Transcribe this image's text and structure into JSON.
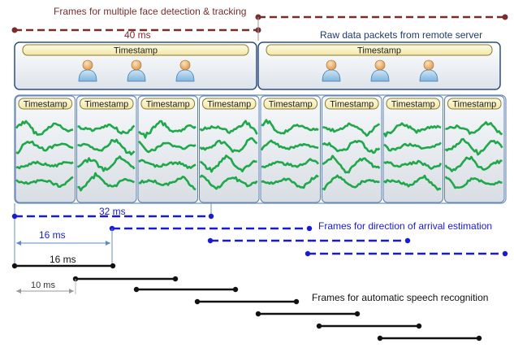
{
  "face_frames": {
    "title": "Frames for multiple face detection & tracking",
    "duration_label": "40 ms",
    "color": "#7a2c2c"
  },
  "packets": {
    "label": "Raw data packets from remote server",
    "timestamp_label": "Timestamp",
    "person_icon": "person-icon",
    "persons_per_packet": 3,
    "count": 2
  },
  "audio": {
    "timestamp_label": "Timestamp",
    "segments": 8,
    "wave_color": "#1fa84a"
  },
  "doa": {
    "label": "Frames for direction of arrival estimation",
    "frame_label": "32 ms",
    "hop_label": "16 ms",
    "color": "#1a1ad6",
    "frames": 4
  },
  "asr": {
    "label": "Frames for automatic speech recognition",
    "frame_label": "16 ms",
    "hop_label": "10 ms",
    "color": "#111111",
    "frames": 7
  }
}
